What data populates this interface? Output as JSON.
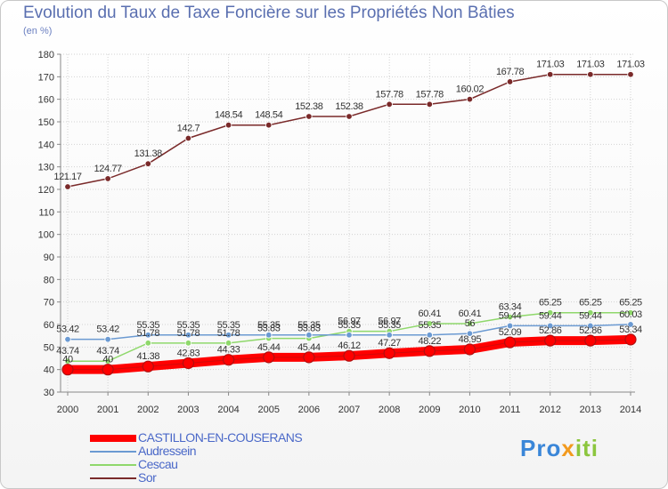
{
  "title": "Evolution du Taux de Taxe Foncière sur les Propriétés Non Bâties",
  "unit": "(en %)",
  "logo": {
    "part1": "Pro",
    "part2": "x",
    "part3": "iti"
  },
  "chart_data": {
    "type": "line",
    "x": [
      "2000",
      "2001",
      "2002",
      "2003",
      "2004",
      "2005",
      "2006",
      "2007",
      "2008",
      "2009",
      "2010",
      "2011",
      "2012",
      "2013",
      "2014"
    ],
    "ylim": [
      30,
      180
    ],
    "yticks": [
      30,
      40,
      50,
      60,
      70,
      80,
      90,
      100,
      110,
      120,
      130,
      140,
      150,
      160,
      170,
      180
    ],
    "grid": true,
    "legend_position": "bottom-left",
    "series": [
      {
        "name": "CASTILLON-EN-COUSERANS",
        "color": "#ff0000",
        "values": [
          40,
          40,
          41.38,
          42.83,
          44.33,
          45.44,
          45.44,
          46.12,
          47.27,
          48.22,
          48.95,
          52.09,
          52.86,
          52.86,
          53.34
        ],
        "labels": [
          "40",
          "40",
          "41.38",
          "42.83",
          "44.33",
          "45.44",
          "45.44",
          "46.12",
          "47.27",
          "48.22",
          "48.95",
          "52.09",
          "52.86",
          "52.86",
          "53.34"
        ]
      },
      {
        "name": "Audressein",
        "color": "#6b9ad2",
        "values": [
          53.42,
          53.42,
          55.35,
          55.35,
          55.35,
          55.35,
          55.35,
          55.35,
          55.35,
          55.35,
          56,
          59.44,
          59.44,
          59.44,
          60.03
        ],
        "labels": [
          "53.42",
          "53.42",
          "55.35",
          "55.35",
          "55.35",
          "55.35",
          "55.35",
          "55.35",
          "55.35",
          "55.35",
          "56",
          "59.44",
          "59.44",
          "59.44",
          "60.03"
        ]
      },
      {
        "name": "Cescau",
        "color": "#8fd86b",
        "values": [
          43.74,
          43.74,
          51.78,
          51.78,
          51.78,
          53.83,
          53.83,
          56.97,
          56.97,
          60.41,
          60.41,
          63.34,
          65.25,
          65.25,
          65.25
        ],
        "labels": [
          "43.74",
          "43.74",
          "51.78",
          "51.78",
          "51.78",
          "53.83",
          "53.83",
          "56.97",
          "56.97",
          "60.41",
          "60.41",
          "63.34",
          "65.25",
          "65.25",
          "65.25"
        ]
      },
      {
        "name": "Sor",
        "color": "#7a2a2a",
        "values": [
          121.17,
          124.77,
          131.38,
          142.7,
          148.54,
          148.54,
          152.38,
          152.38,
          157.78,
          157.78,
          160.02,
          167.78,
          171.03,
          171.03,
          171.03
        ],
        "labels": [
          "121.17",
          "124.77",
          "131.38",
          "142.7",
          "148.54",
          "148.54",
          "152.38",
          "152.38",
          "157.78",
          "157.78",
          "160.02",
          "167.78",
          "171.03",
          "171.03",
          "171.03"
        ]
      }
    ]
  }
}
